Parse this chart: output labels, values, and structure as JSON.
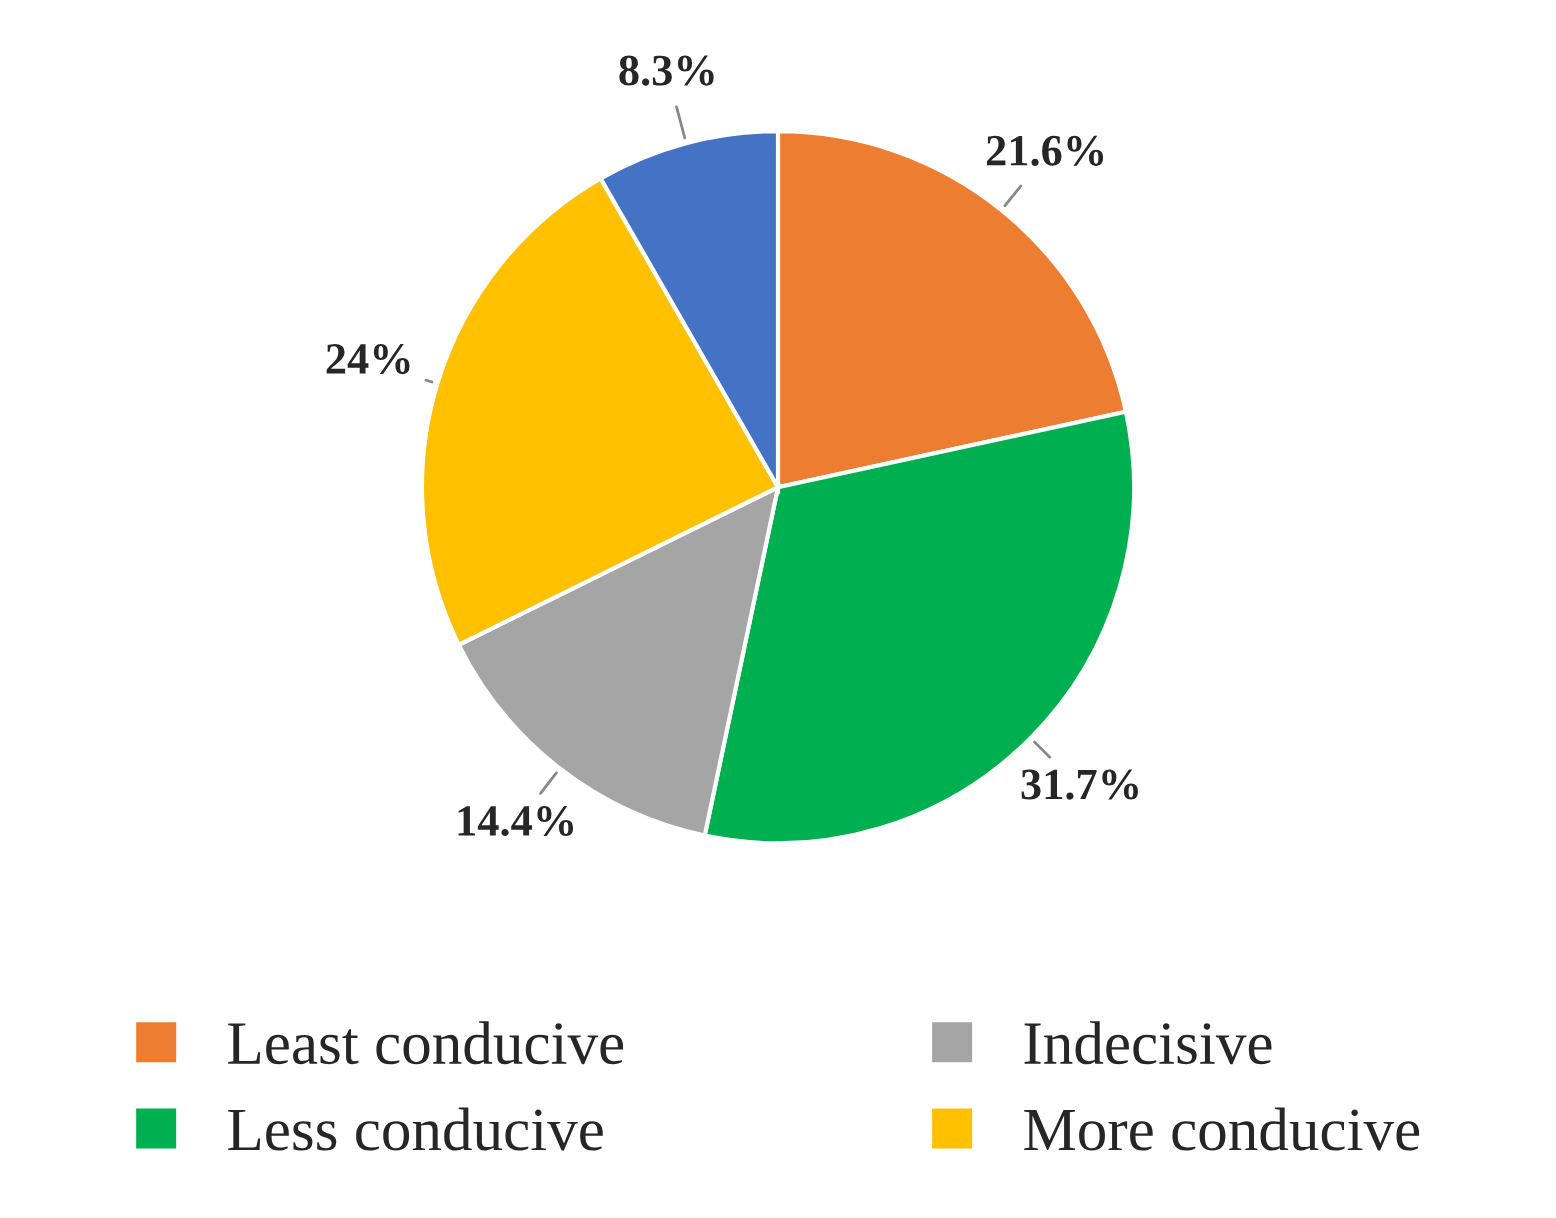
{
  "chart_data": {
    "type": "pie",
    "categories": [
      "Least conducive",
      "Less conducive",
      "Indecisive",
      "More conducive",
      null
    ],
    "values": [
      21.6,
      31.7,
      14.4,
      24,
      8.3
    ],
    "colors": [
      "#ed7d31",
      "#00b050",
      "#a5a5a5",
      "#ffc000",
      "#4472c4"
    ],
    "value_labels": [
      "21.6%",
      "31.7%",
      "14.4%",
      "24%",
      "8.3%"
    ],
    "legend": "bottom"
  }
}
